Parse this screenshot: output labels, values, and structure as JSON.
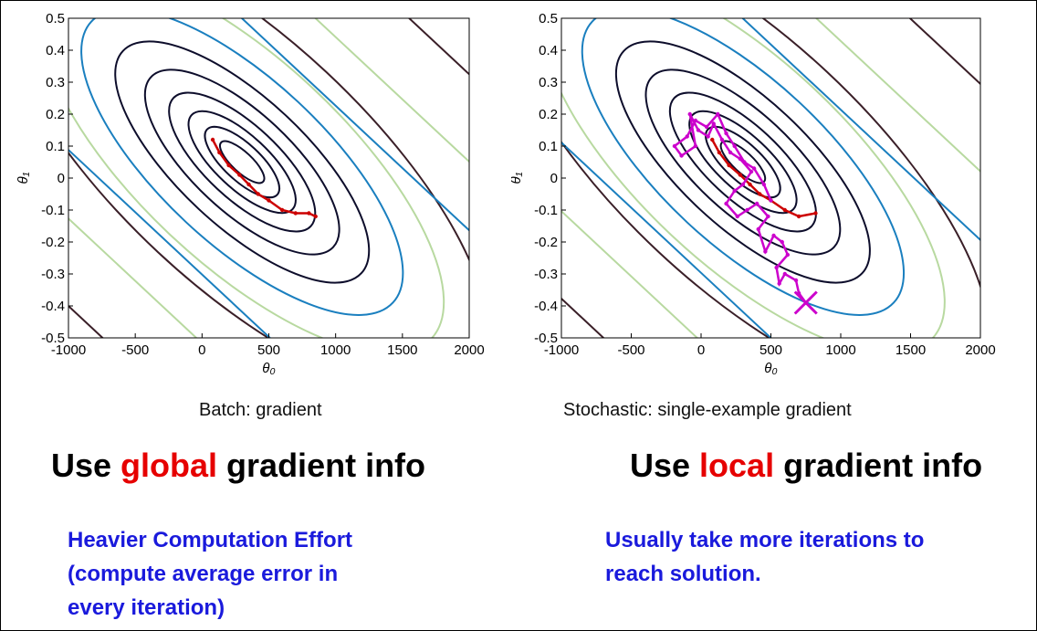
{
  "chart_data": [
    {
      "type": "contour",
      "xlabel": "θ₀",
      "ylabel": "θ₁",
      "xlim": [
        -1000,
        2000
      ],
      "ylim": [
        -0.5,
        0.5
      ],
      "xticks": [
        "-1000",
        "-500",
        "0",
        "500",
        "1000",
        "1500",
        "2000"
      ],
      "yticks": [
        "0.5",
        "0.4",
        "0.3",
        "0.2",
        "0.1",
        "0",
        "-0.1",
        "-0.2",
        "-0.3",
        "-0.4",
        "-0.5"
      ],
      "grid": false,
      "contour_center": [
        300,
        0.05
      ],
      "path_color": "#cc0000",
      "path": [
        [
          850,
          -0.12
        ],
        [
          800,
          -0.11
        ],
        [
          700,
          -0.11
        ],
        [
          600,
          -0.1
        ],
        [
          500,
          -0.07
        ],
        [
          420,
          -0.05
        ],
        [
          350,
          -0.02
        ],
        [
          280,
          0.01
        ],
        [
          200,
          0.04
        ],
        [
          130,
          0.08
        ],
        [
          80,
          0.12
        ]
      ],
      "caption": "Batch: gradient"
    },
    {
      "type": "contour",
      "xlabel": "θ₀",
      "ylabel": "θ₁",
      "xlim": [
        -1000,
        2000
      ],
      "ylim": [
        -0.5,
        0.5
      ],
      "xticks": [
        "-1000",
        "-500",
        "0",
        "500",
        "1000",
        "1500",
        "2000"
      ],
      "yticks": [
        "0.5",
        "0.4",
        "0.3",
        "0.2",
        "0.1",
        "0",
        "-0.1",
        "-0.2",
        "-0.3",
        "-0.4",
        "-0.5"
      ],
      "grid": false,
      "contour_center": [
        300,
        0.05
      ],
      "batch_path_color": "#cc0000",
      "batch_path": [
        [
          820,
          -0.11
        ],
        [
          700,
          -0.12
        ],
        [
          600,
          -0.1
        ],
        [
          500,
          -0.07
        ],
        [
          420,
          -0.05
        ],
        [
          350,
          -0.02
        ],
        [
          280,
          0.01
        ],
        [
          200,
          0.04
        ],
        [
          130,
          0.08
        ],
        [
          80,
          0.12
        ]
      ],
      "sgd_path_color": "#cc00cc",
      "sgd_path": [
        [
          750,
          -0.39
        ],
        [
          700,
          -0.36
        ],
        [
          680,
          -0.32
        ],
        [
          600,
          -0.3
        ],
        [
          560,
          -0.33
        ],
        [
          540,
          -0.28
        ],
        [
          620,
          -0.24
        ],
        [
          580,
          -0.2
        ],
        [
          520,
          -0.18
        ],
        [
          460,
          -0.23
        ],
        [
          410,
          -0.16
        ],
        [
          480,
          -0.12
        ],
        [
          400,
          -0.08
        ],
        [
          330,
          -0.1
        ],
        [
          260,
          -0.12
        ],
        [
          180,
          -0.08
        ],
        [
          240,
          -0.04
        ],
        [
          300,
          -0.02
        ],
        [
          360,
          0.02
        ],
        [
          280,
          0.06
        ],
        [
          210,
          0.08
        ],
        [
          150,
          0.12
        ],
        [
          90,
          0.17
        ],
        [
          50,
          0.13
        ],
        [
          -20,
          0.15
        ],
        [
          -80,
          0.2
        ],
        [
          -40,
          0.1
        ],
        [
          -140,
          0.07
        ],
        [
          -190,
          0.1
        ],
        [
          -100,
          0.13
        ],
        [
          -40,
          0.18
        ],
        [
          40,
          0.16
        ],
        [
          120,
          0.2
        ],
        [
          180,
          0.14
        ],
        [
          240,
          0.1
        ],
        [
          310,
          0.05
        ],
        [
          380,
          0.03
        ],
        [
          450,
          -0.02
        ],
        [
          500,
          -0.07
        ]
      ],
      "caption": "Stochastic: single-example gradient"
    }
  ],
  "headlines": {
    "left": {
      "pre": "Use ",
      "highlight": "global",
      "post": " gradient info"
    },
    "right": {
      "pre": "Use ",
      "highlight": "local",
      "post": " gradient info"
    }
  },
  "notes": {
    "left": [
      "Heavier Computation Effort",
      "(compute average error in",
      "every iteration)"
    ],
    "right": [
      "Usually take more iterations to",
      "reach solution."
    ]
  },
  "colors": {
    "highlight": "#e60000",
    "note": "#1a1adc",
    "contours": [
      "#0d0d2b",
      "#0d0d2b",
      "#0d0d2b",
      "#0d0d2b",
      "#0d0d2b",
      "#0d0d2b",
      "#1a7fbf",
      "#b8d9a0",
      "#3a1f28"
    ]
  }
}
